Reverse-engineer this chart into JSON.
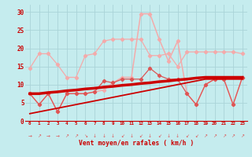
{
  "xlabel": "Vent moyen/en rafales ( km/h )",
  "background_color": "#c5ecee",
  "grid_color": "#aad4d8",
  "x_labels": [
    "0",
    "1",
    "2",
    "3",
    "4",
    "5",
    "6",
    "7",
    "8",
    "9",
    "10",
    "11",
    "12",
    "13",
    "14",
    "15",
    "16",
    "17",
    "18",
    "19",
    "20",
    "21",
    "22",
    "23"
  ],
  "ylim": [
    0,
    32
  ],
  "yticks": [
    0,
    5,
    10,
    15,
    20,
    25,
    30
  ],
  "line_max_y": [
    14.5,
    18.5,
    18.5,
    15.5,
    12.0,
    12.0,
    18.0,
    18.5,
    22.0,
    22.5,
    22.5,
    22.5,
    22.5,
    18.0,
    18.0,
    18.5,
    15.0,
    19.0,
    19.0,
    19.0,
    19.0,
    19.0,
    19.0,
    18.5
  ],
  "line_gust_y": [
    null,
    null,
    null,
    null,
    null,
    null,
    null,
    null,
    null,
    null,
    null,
    null,
    29.5,
    29.5,
    22.5,
    16.5,
    22.0,
    null,
    null,
    null,
    null,
    null,
    null,
    null
  ],
  "line_gust2_y": [
    null,
    null,
    null,
    null,
    null,
    null,
    null,
    null,
    8.5,
    10.5,
    12.0,
    12.0,
    29.5,
    29.5,
    22.5,
    16.5,
    22.0,
    null,
    null,
    null,
    null,
    null,
    null,
    null
  ],
  "line_mean_y": [
    7.5,
    4.5,
    7.5,
    2.5,
    7.5,
    7.5,
    7.5,
    8.0,
    11.0,
    10.5,
    11.5,
    11.5,
    11.5,
    14.5,
    12.5,
    11.5,
    11.5,
    7.5,
    4.5,
    10.0,
    11.5,
    11.5,
    4.5,
    12.0
  ],
  "line_upper_trend": [
    7.5,
    7.5,
    7.8,
    8.0,
    8.3,
    8.5,
    8.8,
    9.0,
    9.3,
    9.5,
    9.8,
    10.0,
    10.3,
    10.5,
    10.8,
    11.0,
    11.3,
    11.5,
    11.8,
    12.0,
    12.0,
    12.0,
    12.0,
    12.0
  ],
  "line_lower_trend": [
    2.0,
    2.5,
    3.0,
    3.5,
    4.0,
    4.5,
    5.0,
    5.5,
    6.0,
    6.5,
    7.0,
    7.5,
    8.0,
    8.5,
    9.0,
    9.5,
    10.0,
    10.5,
    11.0,
    11.5,
    11.5,
    11.5,
    11.5,
    11.5
  ],
  "color_light": "#f4aaaa",
  "color_mid": "#dd5555",
  "color_dark": "#cc0000",
  "wind_arrows": [
    "→",
    "↗",
    "→",
    "→",
    "↗",
    "↗",
    "↘",
    "↓",
    "↓",
    "↓",
    "↙",
    "↓",
    "↙",
    "↓",
    "↙",
    "↓",
    "↓",
    "↙",
    "↙",
    "↗",
    "↗",
    "↗",
    "↗",
    "↗"
  ]
}
